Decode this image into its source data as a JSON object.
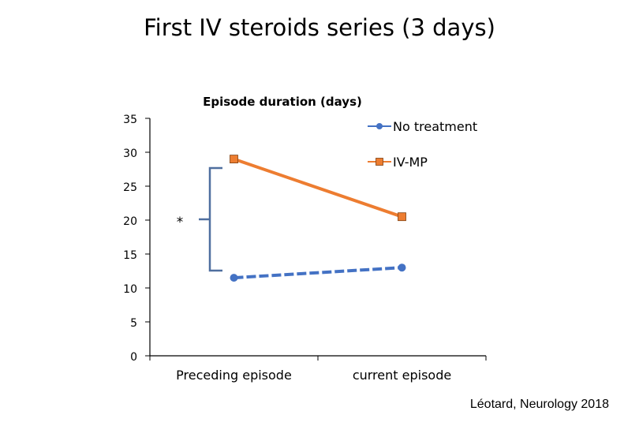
{
  "slide": {
    "title": "First IV steroids series (3 days)",
    "citation": "Léotard, Neurology 2018"
  },
  "chart_data": {
    "type": "line",
    "title": "Episode duration (days)",
    "xlabel": "",
    "ylabel": "",
    "categories": [
      "Preceding episode",
      "current episode"
    ],
    "ylim": [
      0,
      35
    ],
    "yticks": [
      0,
      5,
      10,
      15,
      20,
      25,
      30,
      35
    ],
    "grid": false,
    "legend": "top-right",
    "series": [
      {
        "name": "No treatment",
        "values": [
          11.5,
          13
        ],
        "color": "#4472C4",
        "marker": "circle",
        "line_style": "dashed"
      },
      {
        "name": "IV-MP",
        "values": [
          29,
          20.5
        ],
        "color": "#ED7D31",
        "marker": "square",
        "line_style": "solid"
      }
    ],
    "annotation": {
      "text": "*",
      "bracket_color": "#4F6F9F"
    }
  }
}
